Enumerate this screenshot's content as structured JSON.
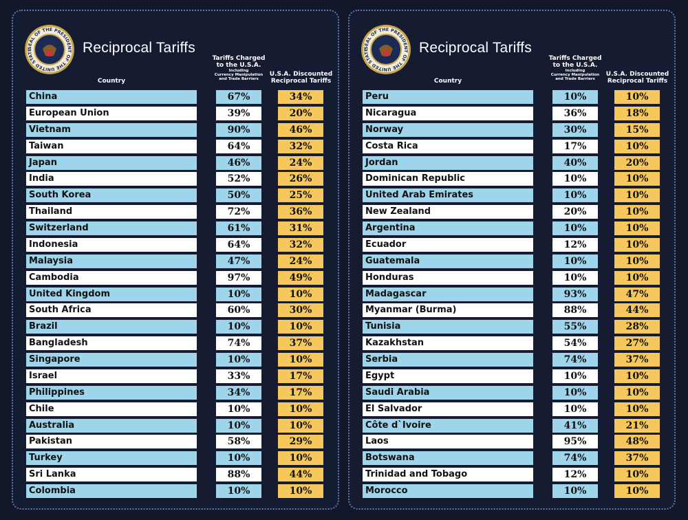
{
  "panels": [
    {
      "seal_text": "SEAL OF THE PRESIDENT OF THE UNITED STATES",
      "title": "Reciprocal Tariffs",
      "headers": {
        "country": "Country",
        "charged_title": [
          "Tariffs Charged",
          "to the U.S.A."
        ],
        "charged_note": [
          "Including",
          "Currency Manipulation",
          "and Trade Barriers"
        ],
        "discounted_title": [
          "U.S.A. Discounted",
          "Reciprocal Tariffs"
        ]
      },
      "rows": [
        [
          "China",
          "67%",
          "34%"
        ],
        [
          "European Union",
          "39%",
          "20%"
        ],
        [
          "Vietnam",
          "90%",
          "46%"
        ],
        [
          "Taiwan",
          "64%",
          "32%"
        ],
        [
          "Japan",
          "46%",
          "24%"
        ],
        [
          "India",
          "52%",
          "26%"
        ],
        [
          "South Korea",
          "50%",
          "25%"
        ],
        [
          "Thailand",
          "72%",
          "36%"
        ],
        [
          "Switzerland",
          "61%",
          "31%"
        ],
        [
          "Indonesia",
          "64%",
          "32%"
        ],
        [
          "Malaysia",
          "47%",
          "24%"
        ],
        [
          "Cambodia",
          "97%",
          "49%"
        ],
        [
          "United Kingdom",
          "10%",
          "10%"
        ],
        [
          "South Africa",
          "60%",
          "30%"
        ],
        [
          "Brazil",
          "10%",
          "10%"
        ],
        [
          "Bangladesh",
          "74%",
          "37%"
        ],
        [
          "Singapore",
          "10%",
          "10%"
        ],
        [
          "Israel",
          "33%",
          "17%"
        ],
        [
          "Philippines",
          "34%",
          "17%"
        ],
        [
          "Chile",
          "10%",
          "10%"
        ],
        [
          "Australia",
          "10%",
          "10%"
        ],
        [
          "Pakistan",
          "58%",
          "29%"
        ],
        [
          "Turkey",
          "10%",
          "10%"
        ],
        [
          "Sri Lanka",
          "88%",
          "44%"
        ],
        [
          "Colombia",
          "10%",
          "10%"
        ]
      ]
    },
    {
      "seal_text": "SEAL OF THE PRESIDENT OF THE UNITED STATES",
      "title": "Reciprocal Tariffs",
      "headers": {
        "country": "Country",
        "charged_title": [
          "Tariffs Charged",
          "to the U.S.A."
        ],
        "charged_note": [
          "Including",
          "Currency Manipulation",
          "and Trade Barriers"
        ],
        "discounted_title": [
          "U.S.A. Discounted",
          "Reciprocal Tariffs"
        ]
      },
      "rows": [
        [
          "Peru",
          "10%",
          "10%"
        ],
        [
          "Nicaragua",
          "36%",
          "18%"
        ],
        [
          "Norway",
          "30%",
          "15%"
        ],
        [
          "Costa Rica",
          "17%",
          "10%"
        ],
        [
          "Jordan",
          "40%",
          "20%"
        ],
        [
          "Dominican Republic",
          "10%",
          "10%"
        ],
        [
          "United Arab Emirates",
          "10%",
          "10%"
        ],
        [
          "New Zealand",
          "20%",
          "10%"
        ],
        [
          "Argentina",
          "10%",
          "10%"
        ],
        [
          "Ecuador",
          "12%",
          "10%"
        ],
        [
          "Guatemala",
          "10%",
          "10%"
        ],
        [
          "Honduras",
          "10%",
          "10%"
        ],
        [
          "Madagascar",
          "93%",
          "47%"
        ],
        [
          "Myanmar (Burma)",
          "88%",
          "44%"
        ],
        [
          "Tunisia",
          "55%",
          "28%"
        ],
        [
          "Kazakhstan",
          "54%",
          "27%"
        ],
        [
          "Serbia",
          "74%",
          "37%"
        ],
        [
          "Egypt",
          "10%",
          "10%"
        ],
        [
          "Saudi Arabia",
          "10%",
          "10%"
        ],
        [
          "El Salvador",
          "10%",
          "10%"
        ],
        [
          "Côte d`Ivoire",
          "41%",
          "21%"
        ],
        [
          "Laos",
          "95%",
          "48%"
        ],
        [
          "Botswana",
          "74%",
          "37%"
        ],
        [
          "Trinidad and Tobago",
          "12%",
          "10%"
        ],
        [
          "Morocco",
          "10%",
          "10%"
        ]
      ]
    }
  ]
}
